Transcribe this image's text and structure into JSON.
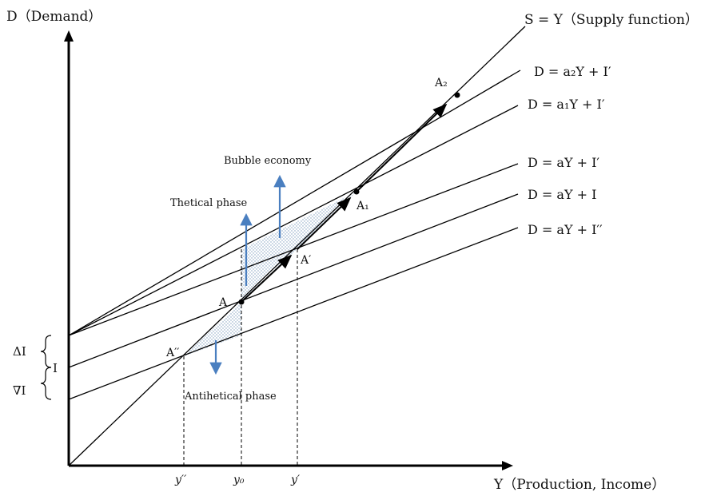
{
  "axes": {
    "y_axis_label": "D（Demand）",
    "x_axis_label": "Y（Production, Income）"
  },
  "lines": {
    "supply": "S = Y（Supply function）",
    "d_a2": "D = a₂Y + I′",
    "d_a1": "D = a₁Y + I′",
    "d_a_iprime": "D = aY + I′",
    "d_a_i": "D = aY + I",
    "d_a_idoubleprime": "D = aY + I′′"
  },
  "points": {
    "a2": "A₂",
    "a1": "A₁",
    "a_prime": "A′",
    "a": "A",
    "a_doubleprime": "A′′"
  },
  "phases": {
    "bubble": "Bubble economy",
    "thetical": "Thetical phase",
    "antithetical": "Antihetical phase"
  },
  "x_ticks": {
    "y_doubleprime": "y′′",
    "y0": "y₀",
    "y_prime": "y′"
  },
  "left_labels": {
    "delta_i": "ΔI",
    "i": "I",
    "nabla_i": "∇I"
  },
  "colors": {
    "line": "#000000",
    "arrow_blue": "#4a7fc0",
    "hatch": "#7f9fbf"
  }
}
